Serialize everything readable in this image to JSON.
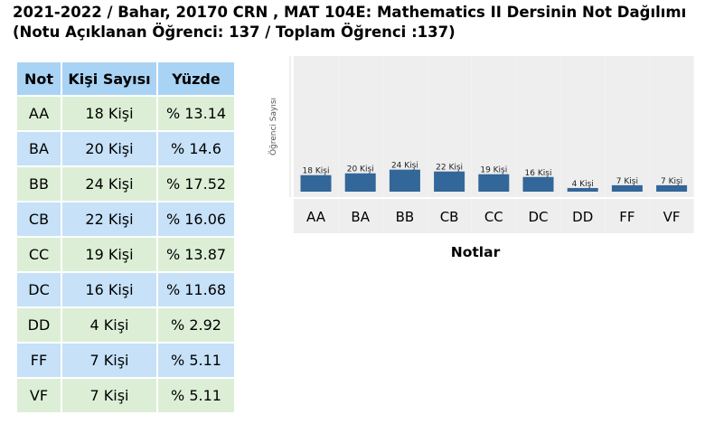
{
  "title": {
    "line1": "2021-2022 / Bahar, 20170 CRN , MAT 104E: Mathematics II Dersinin Not Dağılımı",
    "line2": "(Notu Açıklanan Öğrenci: 137 / Toplam Öğrenci :137)"
  },
  "table": {
    "headers": [
      "Not",
      "Kişi Sayısı",
      "Yüzde"
    ],
    "rows": [
      {
        "grade": "AA",
        "count": "18 Kişi",
        "percent": "% 13.14"
      },
      {
        "grade": "BA",
        "count": "20 Kişi",
        "percent": "% 14.6"
      },
      {
        "grade": "BB",
        "count": "24 Kişi",
        "percent": "% 17.52"
      },
      {
        "grade": "CB",
        "count": "22 Kişi",
        "percent": "% 16.06"
      },
      {
        "grade": "CC",
        "count": "19 Kişi",
        "percent": "% 13.87"
      },
      {
        "grade": "DC",
        "count": "16 Kişi",
        "percent": "% 11.68"
      },
      {
        "grade": "DD",
        "count": "4 Kişi",
        "percent": "% 2.92"
      },
      {
        "grade": "FF",
        "count": "7 Kişi",
        "percent": "% 5.11"
      },
      {
        "grade": "VF",
        "count": "7 Kişi",
        "percent": "% 5.11"
      }
    ]
  },
  "chart_data": {
    "type": "bar",
    "categories": [
      "AA",
      "BA",
      "BB",
      "CB",
      "CC",
      "DC",
      "DD",
      "FF",
      "VF"
    ],
    "values": [
      18,
      20,
      24,
      22,
      19,
      16,
      4,
      7,
      7
    ],
    "data_labels": [
      "18 Kişi",
      "20 Kişi",
      "24 Kişi",
      "22 Kişi",
      "19 Kişi",
      "16 Kişi",
      "4 Kişi",
      "7 Kişi",
      "7 Kişi"
    ],
    "title": "",
    "xlabel": "Notlar",
    "ylabel": "Öğrenci Sayısı",
    "ylim": [
      0,
      137
    ],
    "grid": false,
    "bar_color": "#336699"
  }
}
